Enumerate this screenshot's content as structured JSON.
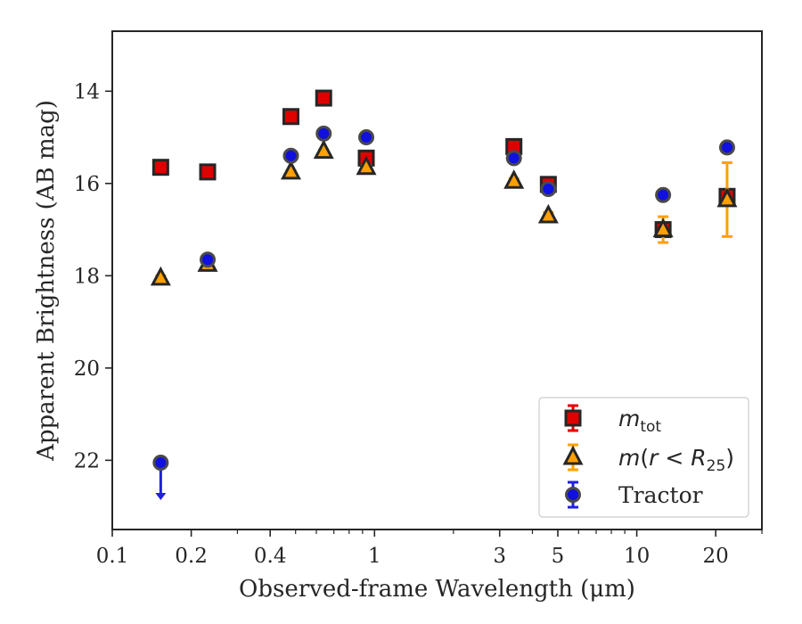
{
  "chart_data": {
    "type": "scatter",
    "xlabel": "Observed-frame Wavelength (μm)",
    "ylabel": "Apparent Brightness (AB mag)",
    "x_scale": "log",
    "xlim": [
      0.1,
      30
    ],
    "ylim": [
      23.5,
      12.7
    ],
    "y_inverted": true,
    "x_ticks": [
      0.1,
      0.2,
      0.4,
      1,
      3,
      5,
      10,
      20
    ],
    "x_tick_labels": [
      "0.1",
      "0.2",
      "0.4",
      "1",
      "3",
      "5",
      "10",
      "20"
    ],
    "y_ticks": [
      14,
      16,
      18,
      20,
      22
    ],
    "y_tick_labels": [
      "14",
      "16",
      "18",
      "20",
      "22"
    ],
    "grid": false,
    "legend_position": "lower-right",
    "series": [
      {
        "name": "m_tot",
        "legend_label": "m_tot",
        "marker": "square",
        "face_color": "#e00000",
        "error_color": "#e00000",
        "x": [
          0.153,
          0.231,
          0.48,
          0.64,
          0.93,
          3.4,
          4.6,
          12.6,
          22.1
        ],
        "y": [
          15.65,
          15.75,
          14.55,
          14.15,
          15.45,
          15.2,
          16.02,
          17.0,
          16.28
        ],
        "yerr": [
          0.04,
          0.04,
          0.03,
          0.03,
          0.04,
          0.05,
          0.06,
          0.08,
          0.12
        ]
      },
      {
        "name": "m(r < R25)",
        "legend_label": "m(r < R25)",
        "marker": "triangle",
        "face_color": "#ffa000",
        "error_color": "#ffa000",
        "x": [
          0.153,
          0.231,
          0.48,
          0.64,
          0.93,
          3.4,
          4.6,
          12.6,
          22.1
        ],
        "y": [
          18.05,
          17.75,
          15.75,
          15.3,
          15.65,
          15.95,
          16.7,
          17.0,
          16.35
        ],
        "yerr": [
          0.05,
          0.05,
          0.03,
          0.03,
          0.04,
          0.05,
          0.07,
          0.28,
          0.8
        ]
      },
      {
        "name": "Tractor",
        "legend_label": "Tractor",
        "marker": "circle",
        "face_color": "#1010e0",
        "error_color": "#2020e0",
        "x": [
          0.153,
          0.231,
          0.48,
          0.64,
          0.93,
          3.4,
          4.6,
          12.6,
          22.1
        ],
        "y": [
          22.05,
          17.65,
          15.4,
          14.92,
          15.0,
          15.45,
          16.12,
          16.25,
          15.22
        ],
        "yerr": [
          0,
          0.04,
          0.03,
          0.03,
          0.03,
          0.04,
          0.05,
          0.06,
          0.08
        ],
        "upper_limit": [
          true,
          false,
          false,
          false,
          false,
          false,
          false,
          false,
          false
        ]
      }
    ]
  }
}
